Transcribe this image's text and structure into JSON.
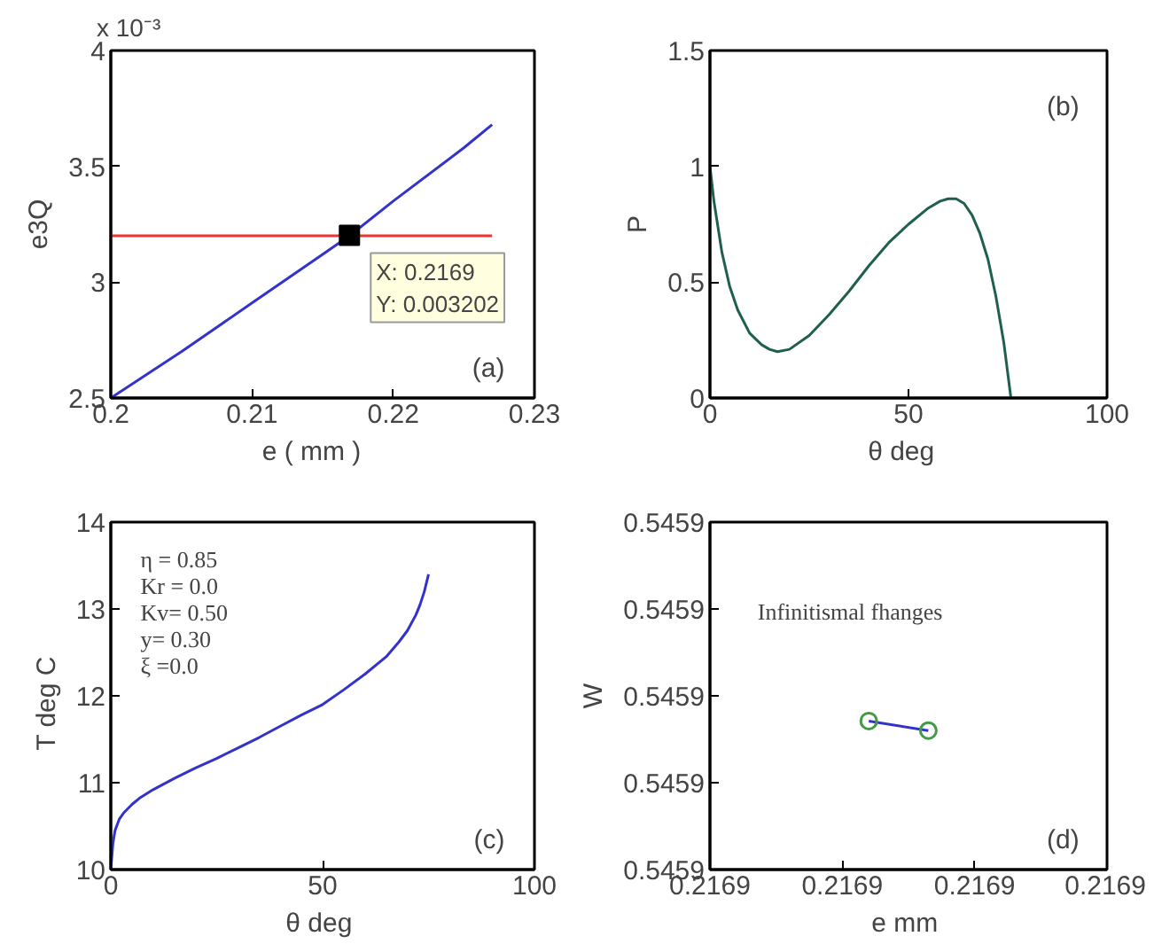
{
  "chart_data": [
    {
      "type": "line",
      "xlabel": "e    ( mm )",
      "ylabel": "e3Q",
      "xlim": [
        0.2,
        0.23
      ],
      "xticks": [
        0.2,
        0.21,
        0.22,
        0.23
      ],
      "ylim": [
        2.5,
        4
      ],
      "yticks": [
        2.5,
        3,
        3.5,
        4
      ],
      "annotations": [
        "x 10⁻³",
        "(a)",
        {
          "text": "X: 0.2169\nY: 0.003202",
          "x": 0.2169,
          "y": 3.202
        }
      ],
      "series": [
        {
          "color": "#3333cc",
          "x": [
            0.2,
            0.205,
            0.21,
            0.215,
            0.2169,
            0.22,
            0.225,
            0.227
          ],
          "values": [
            2.5,
            2.7,
            2.91,
            3.12,
            3.2,
            3.35,
            3.58,
            3.68
          ]
        },
        {
          "color": "#ee3333",
          "x": [
            0.2,
            0.227
          ],
          "values": [
            3.2,
            3.2
          ]
        },
        {
          "type": "scatter",
          "marker": "square",
          "color": "#000000",
          "x": [
            0.2169
          ],
          "values": [
            3.202
          ]
        }
      ]
    },
    {
      "type": "line",
      "xlabel": "θ   deg",
      "ylabel": "P",
      "xlim": [
        0,
        100
      ],
      "xticks": [
        0,
        50,
        100
      ],
      "ylim": [
        0,
        1.5
      ],
      "yticks": [
        0,
        0.5,
        1,
        1.5
      ],
      "annotations": [
        "(b)"
      ],
      "series": [
        {
          "color": "#1f5f4f",
          "x": [
            0,
            1,
            2,
            3,
            5,
            7,
            10,
            13,
            15,
            17,
            20,
            25,
            30,
            35,
            40,
            45,
            50,
            55,
            58,
            60,
            62,
            64,
            66,
            68,
            70,
            72,
            74,
            75.8
          ],
          "values": [
            1.0,
            0.85,
            0.74,
            0.63,
            0.48,
            0.38,
            0.28,
            0.23,
            0.21,
            0.2,
            0.21,
            0.27,
            0.36,
            0.46,
            0.57,
            0.67,
            0.75,
            0.82,
            0.85,
            0.86,
            0.86,
            0.84,
            0.79,
            0.71,
            0.6,
            0.44,
            0.24,
            0
          ]
        }
      ]
    },
    {
      "type": "line",
      "xlabel": "θ  deg",
      "ylabel": "T   deg C",
      "xlim": [
        0,
        100
      ],
      "xticks": [
        0,
        50,
        100
      ],
      "ylim": [
        10,
        14
      ],
      "yticks": [
        10,
        11,
        12,
        13,
        14
      ],
      "annotations": [
        "η = 0.85\nKr = 0.0\nKv= 0.50\ny= 0.30\nξ =0.0",
        "(c)"
      ],
      "series": [
        {
          "color": "#3333cc",
          "x": [
            0,
            0.5,
            1,
            2,
            3,
            5,
            7,
            10,
            15,
            20,
            25,
            30,
            35,
            40,
            45,
            50,
            55,
            60,
            65,
            68,
            70,
            72,
            73,
            74,
            75
          ],
          "values": [
            10,
            10.3,
            10.45,
            10.58,
            10.65,
            10.75,
            10.83,
            10.92,
            11.05,
            11.17,
            11.28,
            11.4,
            11.52,
            11.65,
            11.78,
            11.9,
            12.07,
            12.25,
            12.45,
            12.62,
            12.75,
            12.93,
            13.05,
            13.2,
            13.4
          ]
        }
      ]
    },
    {
      "type": "line",
      "xlabel": "e  mm",
      "ylabel": "W",
      "xlim": [
        0.21686,
        0.21692
      ],
      "xticks": [
        {
          "value": 0.21686,
          "label": "0.2169"
        },
        {
          "value": 0.21688,
          "label": "0.2169"
        },
        {
          "value": 0.2169,
          "label": "0.2169"
        },
        {
          "value": 0.21692,
          "label": "0.2169"
        }
      ],
      "ylim": [
        0.54588,
        0.54592
      ],
      "yticks": [
        {
          "value": 0.54588,
          "label": "0.5459"
        },
        {
          "value": 0.54589,
          "label": "0.5459"
        },
        {
          "value": 0.5459,
          "label": "0.5459"
        },
        {
          "value": 0.54591,
          "label": "0.5459"
        },
        {
          "value": 0.54592,
          "label": "0.5459"
        }
      ],
      "annotations": [
        "Infinitismal fhanges",
        "(d)"
      ],
      "series": [
        {
          "color": "#3333cc",
          "x": [
            0.216884,
            0.216893
          ],
          "values": [
            0.5458971,
            0.545896
          ]
        },
        {
          "type": "scatter",
          "marker": "circle",
          "color": "#449944",
          "x": [
            0.216884,
            0.216893
          ],
          "values": [
            0.5458971,
            0.545896
          ]
        }
      ]
    }
  ]
}
